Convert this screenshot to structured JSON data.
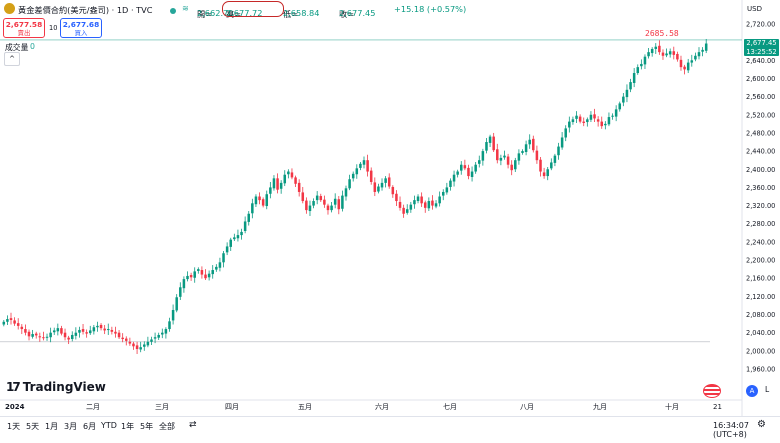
{
  "header": {
    "symbol": "黃金差價合約(美元/盎司) · 1D · TVC",
    "open_label": "開=",
    "open": "2,662.70",
    "high_label": "高=",
    "high": "2,677.72",
    "low_label": "低=",
    "low": "2,658.84",
    "close_label": "收=",
    "close": "2,677.45",
    "change": "+15.18 (+0.57%)",
    "icon_wave": "≋"
  },
  "trade": {
    "sell_price": "2,677.58",
    "sell_label": "賣出",
    "spread": "10",
    "buy_price": "2,677.68",
    "buy_label": "買入"
  },
  "volume": {
    "label": "成交量",
    "value": "0",
    "toggle": "^"
  },
  "axis": {
    "currency": "USD",
    "y_ticks": [
      "2,720.00",
      "2,680.00",
      "2,640.00",
      "2,600.00",
      "2,560.00",
      "2,520.00",
      "2,480.00",
      "2,440.00",
      "2,400.00",
      "2,360.00",
      "2,320.00",
      "2,280.00",
      "2,240.00",
      "2,200.00",
      "2,160.00",
      "2,120.00",
      "2,080.00",
      "2,040.00",
      "2,000.00",
      "1,960.00"
    ],
    "x_ticks": [
      "2024",
      "二月",
      "三月",
      "四月",
      "五月",
      "六月",
      "七月",
      "八月",
      "九月",
      "十月",
      "21"
    ]
  },
  "last_price": {
    "value": "2,677.45",
    "countdown": "13:25:52"
  },
  "high_annotation": "2685.58",
  "brand": {
    "name": "TradingView",
    "mark": "17"
  },
  "side_buttons": {
    "a": "A",
    "l": "L"
  },
  "ranges": [
    "1天",
    "5天",
    "1月",
    "3月",
    "6月",
    "YTD",
    "1年",
    "5年",
    "全部"
  ],
  "nav_icon": "⇄",
  "clock": "16:34:07 (UTC+8)",
  "gear": "⚙",
  "colors": {
    "up": "#089981",
    "down": "#f23645",
    "accent": "#2962ff"
  },
  "chart_data": {
    "type": "candlestick",
    "title": "黃金差價合約(美元/盎司) · 1D · TVC",
    "ylabel": "USD",
    "ylim": [
      1950,
      2730
    ],
    "x_ticks": [
      "2024",
      "二月",
      "三月",
      "四月",
      "五月",
      "六月",
      "七月",
      "八月",
      "九月",
      "十月",
      "21"
    ],
    "last": 2677.45,
    "high_marker": 2685.58,
    "closes": [
      2064,
      2070,
      2068,
      2060,
      2055,
      2048,
      2040,
      2032,
      2037,
      2034,
      2030,
      2028,
      2031,
      2040,
      2045,
      2050,
      2038,
      2030,
      2025,
      2035,
      2040,
      2046,
      2042,
      2038,
      2045,
      2052,
      2055,
      2050,
      2045,
      2048,
      2042,
      2038,
      2030,
      2026,
      2022,
      2016,
      2010,
      2004,
      2008,
      2014,
      2020,
      2025,
      2030,
      2035,
      2040,
      2048,
      2065,
      2090,
      2118,
      2140,
      2158,
      2165,
      2162,
      2175,
      2180,
      2168,
      2160,
      2170,
      2178,
      2185,
      2195,
      2215,
      2230,
      2245,
      2250,
      2255,
      2262,
      2285,
      2302,
      2325,
      2340,
      2332,
      2320,
      2345,
      2360,
      2380,
      2355,
      2370,
      2388,
      2395,
      2382,
      2368,
      2350,
      2330,
      2310,
      2320,
      2330,
      2342,
      2332,
      2322,
      2310,
      2320,
      2335,
      2312,
      2342,
      2358,
      2378,
      2390,
      2402,
      2412,
      2420,
      2395,
      2372,
      2350,
      2362,
      2370,
      2380,
      2362,
      2345,
      2330,
      2315,
      2302,
      2312,
      2322,
      2332,
      2340,
      2325,
      2315,
      2330,
      2320,
      2325,
      2340,
      2350,
      2360,
      2375,
      2388,
      2395,
      2410,
      2402,
      2385,
      2395,
      2410,
      2420,
      2440,
      2460,
      2472,
      2442,
      2420,
      2425,
      2430,
      2410,
      2398,
      2420,
      2435,
      2440,
      2455,
      2465,
      2442,
      2420,
      2395,
      2385,
      2400,
      2415,
      2430,
      2450,
      2470,
      2490,
      2505,
      2510,
      2518,
      2505,
      2502,
      2510,
      2520,
      2512,
      2505,
      2495,
      2500,
      2515,
      2518,
      2532,
      2545,
      2560,
      2575,
      2592,
      2612,
      2625,
      2632,
      2648,
      2658,
      2665,
      2670,
      2658,
      2650,
      2655,
      2660,
      2652,
      2642,
      2625,
      2620,
      2635,
      2640,
      2650,
      2658,
      2663,
      2677
    ]
  }
}
